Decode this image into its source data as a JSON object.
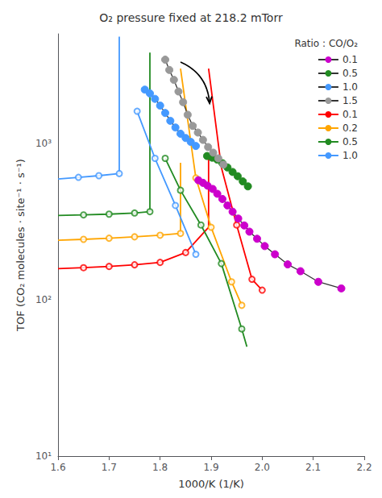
{
  "chart_data": {
    "type": "line",
    "title": "O₂ pressure fixed at 218.2 mTorr",
    "xlabel": "1000/K (1/K)",
    "ylabel": "TOF (CO₂ molecules · site⁻¹ · s⁻¹)",
    "log": "y",
    "grid": false,
    "legend": "upper right",
    "legend_title": "Ratio : CO/O₂",
    "xlim": [
      1.6,
      2.2
    ],
    "xticks": [
      1.6,
      1.7,
      1.8,
      1.9,
      {
        "value": 2,
        "label": "2.0"
      },
      2.1,
      2.2
    ],
    "ylim": [
      10,
      5000
    ],
    "yticks": [
      {
        "value": 10,
        "label": "10¹"
      },
      {
        "value": 100,
        "label": "10²"
      },
      {
        "value": 1000,
        "label": "10³"
      }
    ],
    "series": [
      {
        "name": "0.1",
        "type": "line",
        "marker": "circle",
        "color": "#CC00CC",
        "line_color": "#333333",
        "x": [
          2.155,
          2.11,
          2.075,
          2.05,
          2.025,
          2.005,
          1.99,
          1.975,
          1.965,
          1.953,
          1.942,
          1.932,
          1.922,
          1.912,
          1.903,
          1.893,
          1.884,
          1.875
        ],
        "values": [
          118,
          130,
          152,
          168,
          195,
          220,
          245,
          272,
          298,
          330,
          365,
          400,
          440,
          475,
          510,
          535,
          558,
          580
        ]
      },
      {
        "name": "0.5",
        "type": "line",
        "marker": "circle",
        "color": "#228B22",
        "line_color": "#333333",
        "x": [
          1.972,
          1.962,
          1.952,
          1.942,
          1.932,
          1.922,
          1.912,
          1.902,
          1.892
        ],
        "values": [
          530,
          570,
          615,
          655,
          700,
          745,
          785,
          808,
          828
        ]
      },
      {
        "name": "1.0",
        "type": "line",
        "marker": "circle",
        "color": "#4499FF",
        "line_color": "#333333",
        "x": [
          1.87,
          1.86,
          1.85,
          1.84,
          1.83,
          1.82,
          1.81,
          1.8,
          1.79,
          1.78,
          1.77
        ],
        "values": [
          960,
          1020,
          1080,
          1150,
          1260,
          1390,
          1560,
          1740,
          1920,
          2080,
          2200
        ]
      },
      {
        "name": "1.5",
        "type": "line",
        "marker": "circle",
        "color": "#999999",
        "line_color": "#333333",
        "x": [
          1.924,
          1.914,
          1.904,
          1.894,
          1.884,
          1.874,
          1.864,
          1.854,
          1.845,
          1.836,
          1.827,
          1.818,
          1.81
        ],
        "values": [
          730,
          800,
          870,
          945,
          1050,
          1170,
          1290,
          1520,
          1830,
          2140,
          2540,
          2940,
          3420
        ]
      },
      {
        "name": "0.1",
        "type": "line",
        "marker": "none",
        "color": "#FF0000",
        "x": [
          1.6,
          1.65,
          1.7,
          1.75,
          1.8,
          1.85,
          1.895,
          1.895,
          null,
          1.895,
          1.92,
          1.95,
          1.98,
          2.0
        ],
        "values": [
          158,
          160,
          163,
          167,
          173,
          200,
          290,
          800,
          null,
          3000,
          700,
          300,
          135,
          115
        ]
      },
      {
        "type": "scatter",
        "marker": "open_circle",
        "color": "#FF0000",
        "x": [
          1.65,
          1.7,
          1.75,
          1.8,
          1.85,
          1.95,
          1.98,
          2.0
        ],
        "values": [
          160,
          163,
          167,
          173,
          200,
          300,
          135,
          115
        ]
      },
      {
        "name": "0.2",
        "type": "line",
        "marker": "none",
        "color": "#FFA500",
        "x": [
          1.6,
          1.65,
          1.7,
          1.75,
          1.8,
          1.84,
          1.84,
          null,
          1.84,
          1.87,
          1.9,
          1.94,
          1.96
        ],
        "values": [
          240,
          243,
          247,
          252,
          258,
          265,
          750,
          null,
          3000,
          600,
          290,
          130,
          92
        ]
      },
      {
        "type": "scatter",
        "marker": "open_circle",
        "color": "#FFA500",
        "x": [
          1.65,
          1.7,
          1.75,
          1.8,
          1.84,
          1.87,
          1.9,
          1.94,
          1.96
        ],
        "values": [
          243,
          247,
          252,
          258,
          265,
          600,
          290,
          130,
          92
        ]
      },
      {
        "name": "0.5",
        "type": "line",
        "marker": "none",
        "color": "#228B22",
        "x": [
          1.6,
          1.65,
          1.7,
          1.75,
          1.78,
          1.78,
          1.78,
          null,
          1.81,
          1.84,
          1.88,
          1.92,
          1.96,
          1.97
        ],
        "values": [
          345,
          348,
          352,
          358,
          365,
          900,
          3800,
          null,
          800,
          500,
          300,
          170,
          65,
          50
        ]
      },
      {
        "type": "scatter",
        "marker": "open_circle",
        "color": "#228B22",
        "x": [
          1.65,
          1.7,
          1.75,
          1.78,
          1.81,
          1.84,
          1.88,
          1.92,
          1.96
        ],
        "values": [
          348,
          352,
          358,
          365,
          800,
          500,
          300,
          170,
          65
        ]
      },
      {
        "name": "1.0",
        "type": "line",
        "marker": "none",
        "color": "#4499FF",
        "x": [
          1.6,
          1.64,
          1.68,
          1.72,
          1.72,
          1.72,
          null,
          1.755,
          1.79,
          1.83,
          1.87
        ],
        "values": [
          590,
          605,
          620,
          640,
          2000,
          4800,
          null,
          1600,
          800,
          400,
          195
        ]
      },
      {
        "type": "scatter",
        "marker": "open_circle",
        "color": "#4499FF",
        "x": [
          1.64,
          1.68,
          1.72,
          1.755,
          1.79,
          1.83,
          1.87
        ],
        "values": [
          605,
          620,
          640,
          1600,
          800,
          400,
          195
        ]
      }
    ],
    "annotations": [
      {
        "type": "arrow",
        "from": [
          1.84,
          3300
        ],
        "to": [
          1.897,
          1800
        ],
        "color": "#000000"
      }
    ]
  }
}
